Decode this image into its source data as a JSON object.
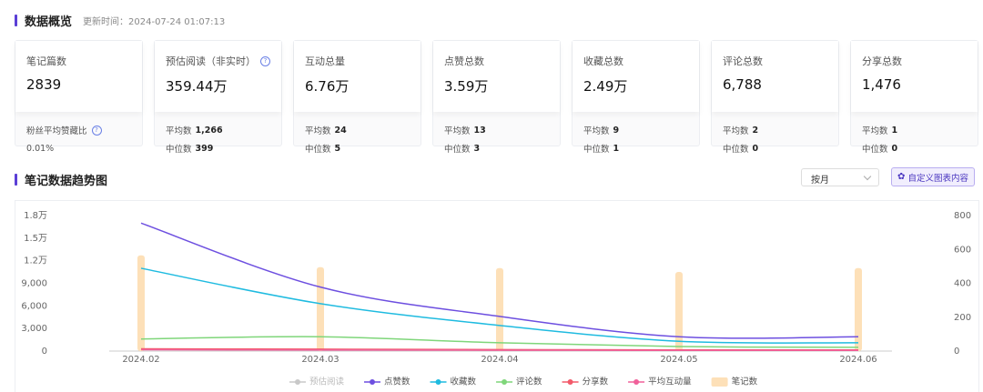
{
  "overview": {
    "title": "数据概览",
    "updated": "更新时间：2024-07-24 01:07:13",
    "cards": [
      {
        "label": "笔记篇数",
        "value": "2839",
        "stats": [
          {
            "label": "粉丝平均赞藏比",
            "help": true
          },
          {
            "label": "0.01%"
          }
        ]
      },
      {
        "label": "预估阅读（非实时）",
        "help": true,
        "value": "359.44万",
        "stats": [
          {
            "label": "平均数",
            "value": "1,266"
          },
          {
            "label": "中位数",
            "value": "399"
          }
        ]
      },
      {
        "label": "互动总量",
        "value": "6.76万",
        "stats": [
          {
            "label": "平均数",
            "value": "24"
          },
          {
            "label": "中位数",
            "value": "5"
          }
        ]
      },
      {
        "label": "点赞总数",
        "value": "3.59万",
        "stats": [
          {
            "label": "平均数",
            "value": "13"
          },
          {
            "label": "中位数",
            "value": "3"
          }
        ]
      },
      {
        "label": "收藏总数",
        "value": "2.49万",
        "stats": [
          {
            "label": "平均数",
            "value": "9"
          },
          {
            "label": "中位数",
            "value": "1"
          }
        ]
      },
      {
        "label": "评论总数",
        "value": "6,788",
        "stats": [
          {
            "label": "平均数",
            "value": "2"
          },
          {
            "label": "中位数",
            "value": "0"
          }
        ]
      },
      {
        "label": "分享总数",
        "value": "1,476",
        "stats": [
          {
            "label": "平均数",
            "value": "1"
          },
          {
            "label": "中位数",
            "value": "0"
          }
        ]
      }
    ]
  },
  "trend": {
    "title": "笔记数据趋势图",
    "select": "按月",
    "button": "自定义图表内容"
  },
  "chart_data": {
    "type": "line",
    "categories": [
      "2024.02",
      "2024.03",
      "2024.04",
      "2024.05",
      "2024.06"
    ],
    "ylim": [
      0,
      18000
    ],
    "yticks": [
      0,
      {
        "value": 3000,
        "label": "3,000"
      },
      {
        "value": 6000,
        "label": "6,000"
      },
      {
        "value": 9000,
        "label": "9,000"
      },
      {
        "value": 12000,
        "label": "1.2万"
      },
      {
        "value": 15000,
        "label": "1.5万"
      },
      {
        "value": 18000,
        "label": "1.8万"
      }
    ],
    "y2lim": [
      0,
      800
    ],
    "y2ticks": [
      0,
      200,
      400,
      600,
      800
    ],
    "series": [
      {
        "name": "预估阅读",
        "color": "#c8c8c8",
        "hidden": true,
        "values": [
          null,
          null,
          null,
          null,
          null
        ]
      },
      {
        "name": "点赞数",
        "color": "#6d4fe0",
        "values": [
          17000,
          8500,
          4600,
          1900,
          1900
        ]
      },
      {
        "name": "收藏数",
        "color": "#1fbbe0",
        "values": [
          11000,
          6300,
          3400,
          1300,
          1100
        ]
      },
      {
        "name": "评论数",
        "color": "#7fd67a",
        "values": [
          1600,
          1900,
          1100,
          600,
          500
        ]
      },
      {
        "name": "分享数",
        "color": "#f25a6a",
        "values": [
          300,
          250,
          200,
          150,
          150
        ]
      },
      {
        "name": "平均互动量",
        "color": "#f0609a",
        "axis": "y2",
        "values": [
          8,
          6,
          5,
          4,
          4
        ]
      },
      {
        "name": "笔记数",
        "color": "#fde0b8",
        "type": "bar",
        "axis": "y2",
        "values": [
          565,
          495,
          490,
          467,
          490
        ]
      }
    ]
  }
}
